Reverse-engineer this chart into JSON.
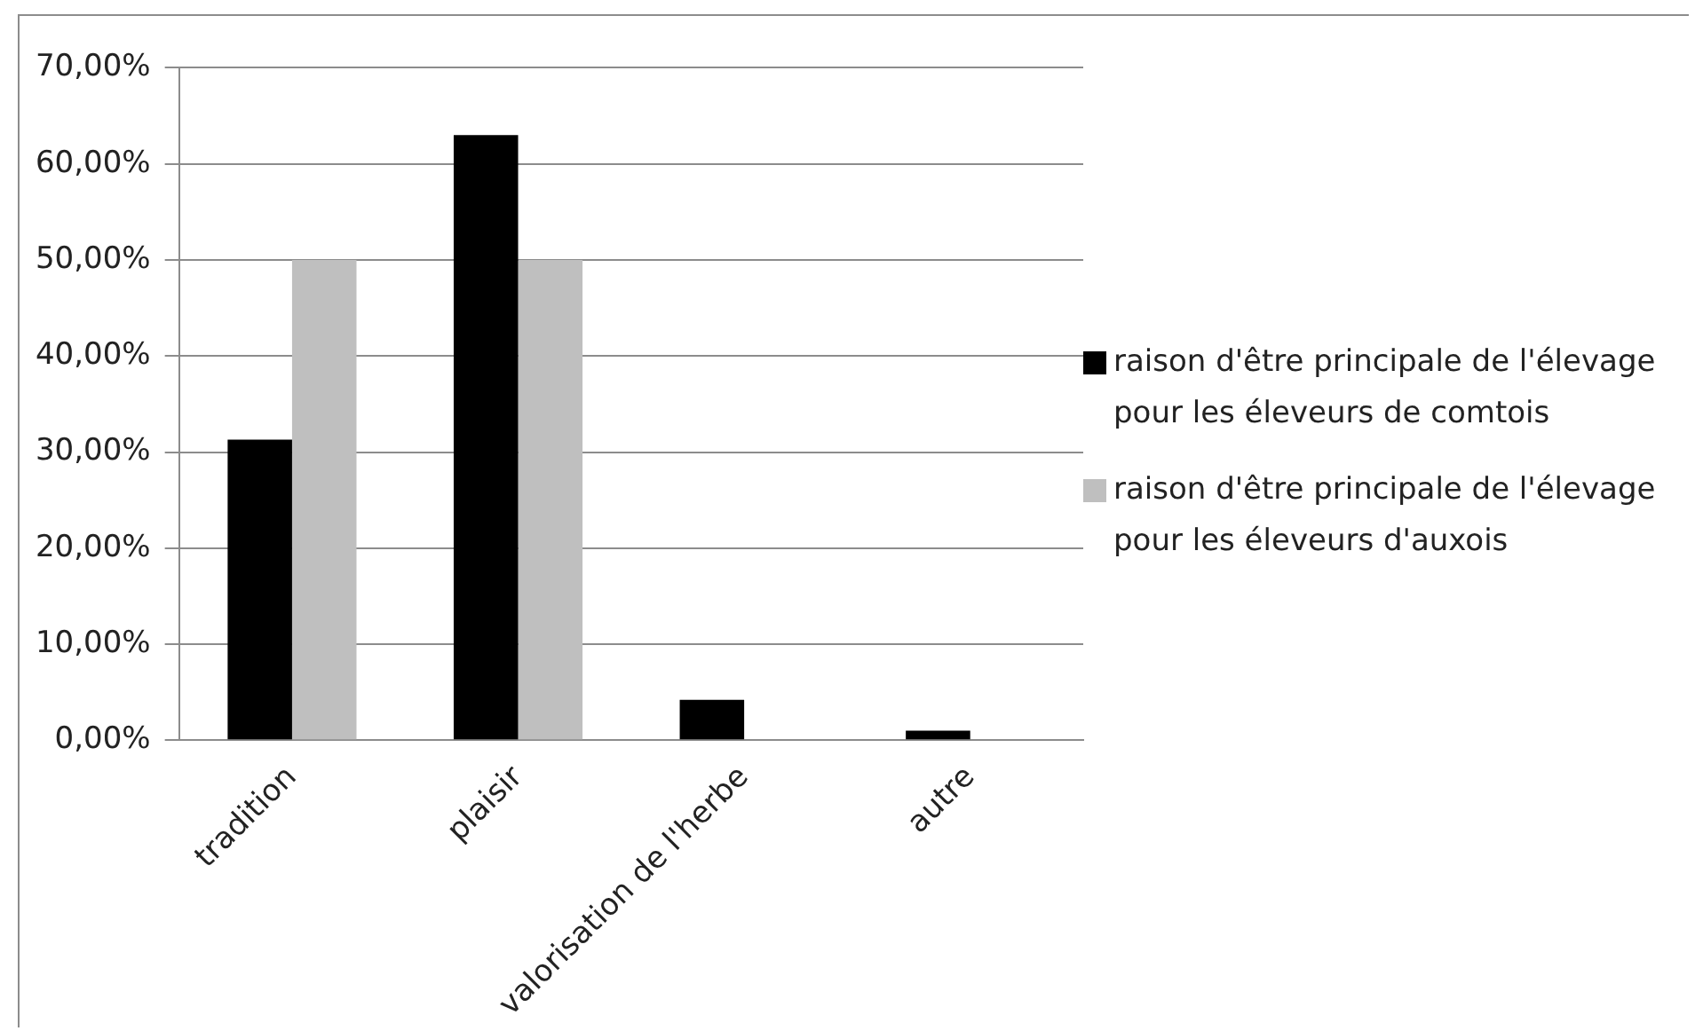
{
  "chart_data": {
    "type": "bar",
    "categories": [
      "tradition",
      "plaisir",
      "valorisation de l'herbe",
      "autre"
    ],
    "series": [
      {
        "name": "raison d'être principale de l'élevage pour les éleveurs de comtois",
        "color": "#000000",
        "values": [
          31.3,
          63,
          4.2,
          1
        ]
      },
      {
        "name": "raison d'être principale de l'élevage pour les éleveurs d'auxois",
        "color": "#bfbfbf",
        "values": [
          50,
          50,
          0,
          0
        ]
      }
    ],
    "ylim": [
      0,
      70
    ],
    "yticks": [
      {
        "value": 0,
        "label": "0,00%"
      },
      {
        "value": 10,
        "label": "10,00%"
      },
      {
        "value": 20,
        "label": "20,00%"
      },
      {
        "value": 30,
        "label": "30,00%"
      },
      {
        "value": 40,
        "label": "40,00%"
      },
      {
        "value": 50,
        "label": "50,00%"
      },
      {
        "value": 60,
        "label": "60,00%"
      },
      {
        "value": 70,
        "label": "70,00%"
      }
    ],
    "grid": "y",
    "legend": "right"
  }
}
